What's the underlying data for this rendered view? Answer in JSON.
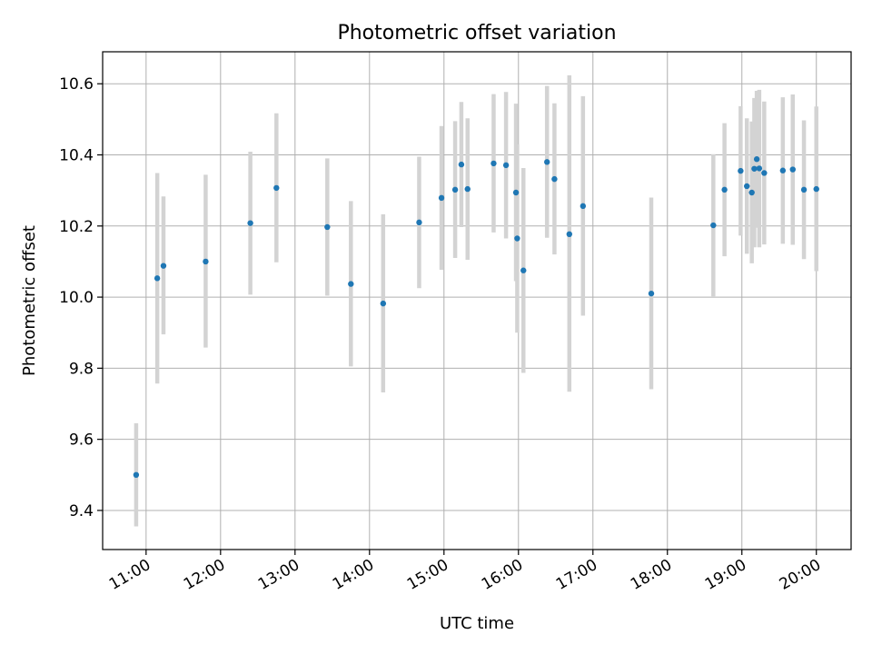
{
  "chart_data": {
    "type": "scatter",
    "title": "Photometric offset variation",
    "xlabel": "UTC time",
    "ylabel": "Photometric offset",
    "x_ticks": [
      "11:00",
      "12:00",
      "13:00",
      "14:00",
      "15:00",
      "16:00",
      "17:00",
      "18:00",
      "19:00",
      "20:00"
    ],
    "x_tick_hours": [
      11,
      12,
      13,
      14,
      15,
      16,
      17,
      18,
      19,
      20
    ],
    "y_ticks": [
      "9.4",
      "9.6",
      "9.8",
      "10.0",
      "10.2",
      "10.4",
      "10.6"
    ],
    "y_tick_values": [
      9.4,
      9.6,
      9.8,
      10.0,
      10.2,
      10.4,
      10.6
    ],
    "xlim": [
      "10:25",
      "20:28"
    ],
    "ylim": [
      9.29,
      10.69
    ],
    "grid": true,
    "colors": {
      "point": "#1f77b4",
      "errorbar": "#d3d3d3",
      "grid": "#b0b0b0"
    },
    "series": [
      {
        "points": [
          {
            "x": "10:52",
            "y": 9.5,
            "lo": 9.355,
            "hi": 9.645
          },
          {
            "x": "11:09",
            "y": 10.053,
            "lo": 9.757,
            "hi": 10.349
          },
          {
            "x": "11:14",
            "y": 10.088,
            "lo": 9.895,
            "hi": 10.283
          },
          {
            "x": "11:48",
            "y": 10.1,
            "lo": 9.858,
            "hi": 10.344
          },
          {
            "x": "12:24",
            "y": 10.208,
            "lo": 10.007,
            "hi": 10.409
          },
          {
            "x": "12:45",
            "y": 10.307,
            "lo": 10.098,
            "hi": 10.517
          },
          {
            "x": "13:26",
            "y": 10.197,
            "lo": 10.004,
            "hi": 10.39
          },
          {
            "x": "13:45",
            "y": 10.037,
            "lo": 9.805,
            "hi": 10.27
          },
          {
            "x": "14:11",
            "y": 9.982,
            "lo": 9.732,
            "hi": 10.233
          },
          {
            "x": "14:40",
            "y": 10.21,
            "lo": 10.025,
            "hi": 10.395
          },
          {
            "x": "14:58",
            "y": 10.279,
            "lo": 10.077,
            "hi": 10.481
          },
          {
            "x": "15:09",
            "y": 10.302,
            "lo": 10.11,
            "hi": 10.495
          },
          {
            "x": "15:14",
            "y": 10.373,
            "lo": 10.197,
            "hi": 10.549
          },
          {
            "x": "15:19",
            "y": 10.304,
            "lo": 10.105,
            "hi": 10.503
          },
          {
            "x": "15:40",
            "y": 10.376,
            "lo": 10.182,
            "hi": 10.571
          },
          {
            "x": "15:50",
            "y": 10.371,
            "lo": 10.165,
            "hi": 10.577
          },
          {
            "x": "15:58",
            "y": 10.294,
            "lo": 10.045,
            "hi": 10.544
          },
          {
            "x": "15:59",
            "y": 10.165,
            "lo": 9.9,
            "hi": 10.43
          },
          {
            "x": "16:04",
            "y": 10.075,
            "lo": 9.787,
            "hi": 10.363
          },
          {
            "x": "16:23",
            "y": 10.38,
            "lo": 10.167,
            "hi": 10.594
          },
          {
            "x": "16:29",
            "y": 10.332,
            "lo": 10.12,
            "hi": 10.545
          },
          {
            "x": "16:41",
            "y": 10.177,
            "lo": 9.734,
            "hi": 10.624
          },
          {
            "x": "16:52",
            "y": 10.256,
            "lo": 9.948,
            "hi": 10.565
          },
          {
            "x": "17:47",
            "y": 10.01,
            "lo": 9.741,
            "hi": 10.28
          },
          {
            "x": "18:37",
            "y": 10.202,
            "lo": 10.002,
            "hi": 10.402
          },
          {
            "x": "18:46",
            "y": 10.302,
            "lo": 10.115,
            "hi": 10.489
          },
          {
            "x": "18:59",
            "y": 10.355,
            "lo": 10.173,
            "hi": 10.537
          },
          {
            "x": "19:04",
            "y": 10.312,
            "lo": 10.122,
            "hi": 10.503
          },
          {
            "x": "19:08",
            "y": 10.294,
            "lo": 10.095,
            "hi": 10.494
          },
          {
            "x": "19:10",
            "y": 10.361,
            "lo": 10.14,
            "hi": 10.56
          },
          {
            "x": "19:12",
            "y": 10.388,
            "lo": 10.195,
            "hi": 10.58
          },
          {
            "x": "19:14",
            "y": 10.362,
            "lo": 10.14,
            "hi": 10.583
          },
          {
            "x": "19:18",
            "y": 10.349,
            "lo": 10.148,
            "hi": 10.55
          },
          {
            "x": "19:33",
            "y": 10.356,
            "lo": 10.15,
            "hi": 10.562
          },
          {
            "x": "19:41",
            "y": 10.359,
            "lo": 10.147,
            "hi": 10.57
          },
          {
            "x": "19:50",
            "y": 10.302,
            "lo": 10.107,
            "hi": 10.497
          },
          {
            "x": "20:00",
            "y": 10.304,
            "lo": 10.073,
            "hi": 10.536
          }
        ]
      }
    ]
  }
}
